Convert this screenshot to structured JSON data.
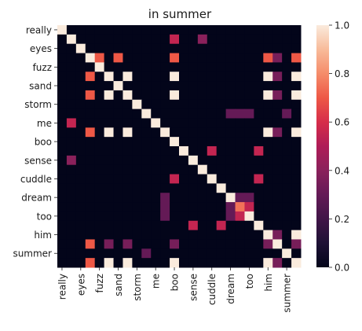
{
  "chart_data": {
    "type": "heatmap",
    "title": "in summer",
    "xlabel": "",
    "ylabel": "",
    "labels": [
      "really",
      "",
      "eyes",
      "",
      "fuzz",
      "",
      "sand",
      "",
      "storm",
      "",
      "me",
      "",
      "boo",
      "",
      "sense",
      "",
      "cuddle",
      "",
      "dream",
      "",
      "too",
      "",
      "him",
      "",
      "summer",
      ""
    ],
    "colorbar": {
      "min": 0.0,
      "max": 1.0,
      "ticks": [
        "0.0",
        "0.2",
        "0.4",
        "0.6",
        "0.8",
        "1.0"
      ]
    },
    "colormap": "rocket",
    "matrix": [
      [
        1,
        0,
        0,
        0,
        0,
        0,
        0,
        0,
        0,
        0,
        0,
        0,
        0,
        0,
        0,
        0,
        0,
        0,
        0,
        0,
        0,
        0,
        0,
        0,
        0,
        0
      ],
      [
        0,
        1,
        0,
        0,
        0,
        0,
        0,
        0,
        0,
        0,
        0,
        0,
        0.55,
        0,
        0,
        0.4,
        0,
        0,
        0,
        0,
        0,
        0,
        0,
        0,
        0,
        0
      ],
      [
        0,
        0,
        1,
        0,
        0,
        0,
        0,
        0,
        0,
        0,
        0,
        0,
        0,
        0,
        0,
        0,
        0,
        0,
        0,
        0,
        0,
        0,
        0,
        0,
        0,
        0
      ],
      [
        0,
        0,
        0,
        1,
        0.7,
        0,
        0.7,
        0,
        0,
        0,
        0,
        0,
        0.7,
        0,
        0,
        0,
        0,
        0,
        0,
        0,
        0,
        0,
        0.7,
        0.35,
        0,
        0.7
      ],
      [
        0,
        0,
        0,
        0,
        1,
        0,
        0,
        0,
        0,
        0,
        0,
        0,
        0,
        0,
        0,
        0,
        0,
        0,
        0,
        0,
        0,
        0,
        0,
        0,
        0,
        0
      ],
      [
        0,
        0,
        0,
        0.7,
        0,
        1,
        0,
        1,
        0,
        0,
        0,
        0,
        1,
        0,
        0,
        0,
        0,
        0,
        0,
        0,
        0,
        0,
        1,
        0.35,
        0,
        1
      ],
      [
        0,
        0,
        0,
        0,
        0,
        0,
        1,
        0,
        0,
        0,
        0,
        0,
        0,
        0,
        0,
        0,
        0,
        0,
        0,
        0,
        0,
        0,
        0,
        0,
        0,
        0
      ],
      [
        0,
        0,
        0,
        0.7,
        0,
        1,
        0,
        1,
        0,
        0,
        0,
        0,
        1,
        0,
        0,
        0,
        0,
        0,
        0,
        0,
        0,
        0,
        1,
        0.35,
        0,
        1
      ],
      [
        0,
        0,
        0,
        0,
        0,
        0,
        0,
        0,
        1,
        0,
        0,
        0,
        0,
        0,
        0,
        0,
        0,
        0,
        0,
        0,
        0,
        0,
        0,
        0,
        0,
        0
      ],
      [
        0,
        0,
        0,
        0,
        0,
        0,
        0,
        0,
        0,
        1,
        0,
        0,
        0,
        0,
        0,
        0,
        0,
        0,
        0.3,
        0.3,
        0.3,
        0,
        0,
        0,
        0.3,
        0
      ],
      [
        0,
        0.55,
        0,
        0,
        0,
        0,
        0,
        0,
        0,
        0,
        1,
        0,
        0,
        0,
        0,
        0,
        0,
        0,
        0,
        0,
        0,
        0,
        0,
        0,
        0,
        0
      ],
      [
        0,
        0,
        0,
        0.7,
        0,
        1,
        0,
        1,
        0,
        0,
        0,
        1,
        0,
        0,
        0,
        0,
        0,
        0,
        0,
        0,
        0,
        0,
        1,
        0.35,
        0,
        1
      ],
      [
        0,
        0,
        0,
        0,
        0,
        0,
        0,
        0,
        0,
        0,
        0,
        0,
        1,
        0,
        0,
        0,
        0,
        0,
        0,
        0,
        0,
        0,
        0,
        0,
        0,
        0
      ],
      [
        0,
        0,
        0,
        0,
        0,
        0,
        0,
        0,
        0,
        0,
        0,
        0,
        0,
        1,
        0,
        0,
        0.55,
        0,
        0,
        0,
        0,
        0.55,
        0,
        0,
        0,
        0
      ],
      [
        0,
        0.4,
        0,
        0,
        0,
        0,
        0,
        0,
        0,
        0,
        0,
        0,
        0,
        0,
        1,
        0,
        0,
        0,
        0,
        0,
        0,
        0,
        0,
        0,
        0,
        0
      ],
      [
        0,
        0,
        0,
        0,
        0,
        0,
        0,
        0,
        0,
        0,
        0,
        0,
        0,
        0,
        0,
        1,
        0,
        0,
        0,
        0,
        0,
        0,
        0,
        0,
        0,
        0
      ],
      [
        0,
        0,
        0,
        0,
        0,
        0,
        0,
        0,
        0,
        0,
        0,
        0,
        0.55,
        0,
        0,
        0,
        1,
        0,
        0,
        0,
        0,
        0.55,
        0,
        0,
        0,
        0
      ],
      [
        0,
        0,
        0,
        0,
        0,
        0,
        0,
        0,
        0,
        0,
        0,
        0,
        0,
        0,
        0,
        0,
        0,
        1,
        0,
        0,
        0,
        0,
        0,
        0,
        0,
        0
      ],
      [
        0,
        0,
        0,
        0,
        0,
        0,
        0,
        0,
        0,
        0,
        0,
        0.3,
        0,
        0,
        0,
        0,
        0,
        0,
        1,
        0.3,
        0.3,
        0,
        0,
        0,
        0,
        0
      ],
      [
        0,
        0,
        0,
        0,
        0,
        0,
        0,
        0,
        0,
        0,
        0,
        0.3,
        0,
        0,
        0,
        0,
        0,
        0,
        0.3,
        0.75,
        0.55,
        0,
        0,
        0,
        0,
        0
      ],
      [
        0,
        0,
        0,
        0,
        0,
        0,
        0,
        0,
        0,
        0,
        0,
        0.3,
        0,
        0,
        0,
        0,
        0,
        0,
        0.3,
        0.55,
        1,
        0,
        0,
        0,
        0,
        0
      ],
      [
        0,
        0,
        0,
        0,
        0,
        0,
        0,
        0,
        0,
        0,
        0,
        0,
        0,
        0,
        0.55,
        0,
        0,
        0.55,
        0,
        0,
        0,
        1,
        0,
        0,
        0,
        0
      ],
      [
        0,
        0,
        0,
        0,
        0,
        0,
        0,
        0,
        0,
        0,
        0,
        0,
        0,
        0,
        0,
        0,
        0,
        0,
        0,
        0,
        0,
        0,
        1,
        0.35,
        0,
        1
      ],
      [
        0,
        0,
        0,
        0.7,
        0,
        0.35,
        0,
        0.35,
        0,
        0,
        0,
        0,
        0.35,
        0,
        0,
        0,
        0,
        0,
        0,
        0,
        0,
        0,
        0.35,
        1,
        0,
        0.35
      ],
      [
        0,
        0,
        0,
        0,
        0,
        0,
        0,
        0,
        0,
        0.3,
        0,
        0,
        0,
        0,
        0,
        0,
        0,
        0,
        0,
        0,
        0,
        0,
        0,
        0,
        1,
        0
      ],
      [
        0,
        0,
        0,
        0.7,
        0,
        1,
        0,
        1,
        0,
        0,
        0,
        0,
        1,
        0,
        0,
        0,
        0,
        0,
        0,
        0,
        0,
        0,
        1,
        0.35,
        0,
        1
      ]
    ]
  }
}
